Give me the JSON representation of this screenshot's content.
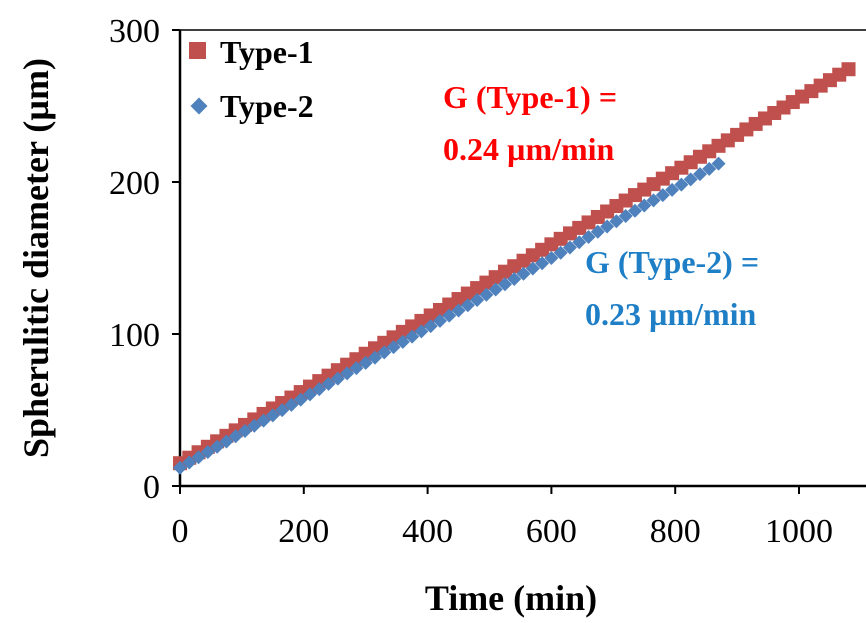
{
  "chart_data": {
    "type": "scatter",
    "xlabel": "Time (min)",
    "ylabel": "Spherulitic diameter (µm)",
    "xlim": [
      0,
      1080
    ],
    "ylim": [
      0,
      300
    ],
    "x_ticks": [
      "0",
      "200",
      "400",
      "600",
      "800",
      "1000"
    ],
    "y_ticks": [
      "0",
      "100",
      "200",
      "300"
    ],
    "x_tick_values": [
      0,
      200,
      400,
      600,
      800,
      1000
    ],
    "y_tick_values": [
      0,
      100,
      200,
      300
    ],
    "grid": false,
    "legend_position": "top-left",
    "series": [
      {
        "name": "Type-1",
        "color": "#c0504d",
        "marker": "square",
        "x_start": 0,
        "x_step": 15,
        "x_end": 1080,
        "slope": 0.24,
        "intercept": 15
      },
      {
        "name": "Type-2",
        "color": "#4f81bd",
        "marker": "diamond",
        "x_start": 0,
        "x_step": 15,
        "x_end": 870,
        "slope": 0.23,
        "intercept": 12
      }
    ],
    "annotations": [
      {
        "lines": [
          "G (Type-1) =",
          "0.24 µm/min"
        ],
        "color": "#ff0000"
      },
      {
        "lines": [
          "G (Type-2) =",
          "0.23 µm/min"
        ],
        "color": "#1f7fc6"
      }
    ]
  }
}
